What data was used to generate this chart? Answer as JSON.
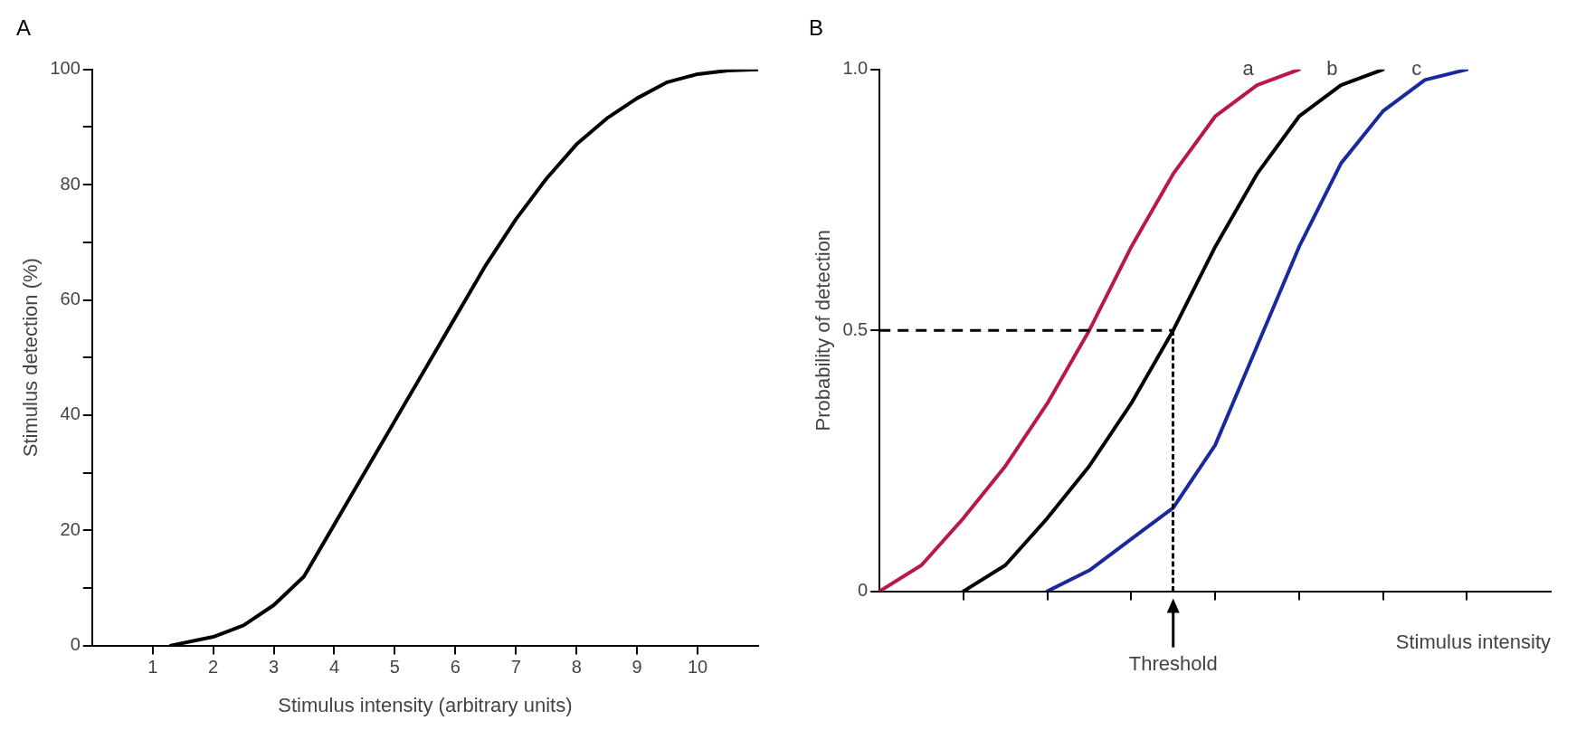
{
  "chart_data": [
    {
      "type": "line",
      "title": "A",
      "xlabel": "Stimulus intensity (arbitrary units)",
      "ylabel": "Stimulus detection (%)",
      "xlim": [
        0,
        11
      ],
      "xticks": [
        1,
        2,
        3,
        4,
        5,
        6,
        7,
        8,
        9,
        10
      ],
      "ylim": [
        0,
        100
      ],
      "yticks": [
        0,
        {
          "value": 10,
          "label": null
        },
        20,
        {
          "value": 30,
          "label": null
        },
        40,
        {
          "value": 50,
          "label": null
        },
        60,
        {
          "value": 70,
          "label": null
        },
        80,
        {
          "value": 90,
          "label": null
        },
        100
      ],
      "grid": false,
      "legend": false,
      "marker": "none",
      "line_style": "solid",
      "series": [
        {
          "color": "#000000",
          "x": [
            1.3,
            2,
            2.5,
            3,
            3.5,
            4,
            4.5,
            5,
            5.5,
            6,
            6.5,
            7,
            7.5,
            8,
            8.5,
            9,
            9.5,
            10,
            10.5,
            11
          ],
          "values": [
            0,
            1.5,
            3.5,
            7,
            12,
            21,
            30,
            39,
            48,
            57,
            66,
            74,
            81,
            87,
            91.5,
            95,
            97.8,
            99.2,
            99.8,
            100
          ]
        }
      ]
    },
    {
      "type": "line",
      "title": "B",
      "xlabel": "Stimulus intensity",
      "ylabel": "Probability of detection",
      "categories": [
        null,
        null,
        null,
        null,
        null,
        null,
        null,
        null,
        null,
        null,
        null,
        null,
        null,
        null,
        null,
        null,
        null
      ],
      "ylim": [
        0,
        1
      ],
      "yticks": [
        0,
        0.5,
        {
          "value": 1,
          "label": "1.0"
        }
      ],
      "grid": false,
      "legend": false,
      "marker": "none",
      "line_style": "solid",
      "series": [
        {
          "name": "a",
          "color": "#b8174f",
          "values": [
            0,
            0.05,
            0.14,
            0.24,
            0.36,
            0.5,
            0.66,
            0.8,
            0.91,
            0.97,
            1,
            null,
            null,
            null,
            null,
            null,
            null
          ]
        },
        {
          "name": "b",
          "color": "#000000",
          "values": [
            null,
            null,
            0,
            0.05,
            0.14,
            0.24,
            0.36,
            0.5,
            0.66,
            0.8,
            0.91,
            0.97,
            1,
            null,
            null,
            null,
            null
          ]
        },
        {
          "name": "c",
          "color": "#1a2a9c",
          "values": [
            null,
            null,
            null,
            null,
            0,
            0.04,
            0.1,
            0.16,
            0.28,
            0.47,
            0.66,
            0.82,
            0.92,
            0.98,
            1,
            null,
            null
          ]
        }
      ],
      "ref_lines": [
        {
          "axis": "y",
          "value": 0.5,
          "line_style": "dashed",
          "color": "#000000"
        }
      ],
      "annotations": [
        "Threshold"
      ]
    }
  ]
}
